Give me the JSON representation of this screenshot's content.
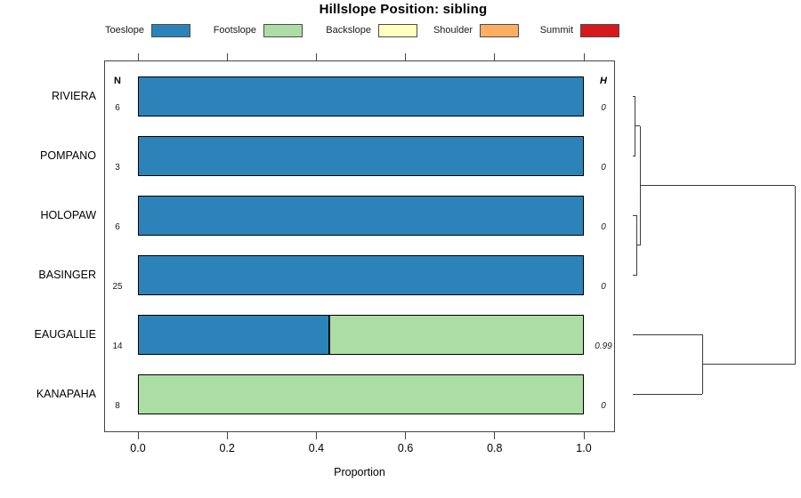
{
  "title": "Hillslope Position: sibling",
  "legend": {
    "items": [
      {
        "label": "Toeslope",
        "color": "#2B83BA"
      },
      {
        "label": "Footslope",
        "color": "#ABDDA4"
      },
      {
        "label": "Backslope",
        "color": "#FFFFBF"
      },
      {
        "label": "Shoulder",
        "color": "#FDAE61"
      },
      {
        "label": "Summit",
        "color": "#D7191C"
      }
    ]
  },
  "columns": {
    "n_header": "N",
    "h_header": "H"
  },
  "xaxis": {
    "label": "Proportion",
    "tick_labels": [
      "0.0",
      "0.2",
      "0.4",
      "0.6",
      "0.8",
      "1.0"
    ],
    "tick_values": [
      0,
      0.2,
      0.4,
      0.6,
      0.8,
      1.0
    ]
  },
  "chart_data": {
    "type": "bar",
    "subtype": "horizontal-stacked-proportion",
    "title": "Hillslope Position: sibling",
    "xlabel": "Proportion",
    "xlim": [
      0,
      1.04
    ],
    "grid": false,
    "legend_position": "top",
    "categories": [
      "RIVIERA",
      "POMPANO",
      "HOLOPAW",
      "BASINGER",
      "EAUGALLIE",
      "KANAPAHA"
    ],
    "n_values": [
      "6",
      "3",
      "6",
      "25",
      "14",
      "8"
    ],
    "h_values": [
      "0",
      "0",
      "0",
      "0",
      "0.99",
      "0"
    ],
    "series": [
      {
        "name": "Toeslope",
        "color": "#2B83BA",
        "values": [
          1,
          1,
          1,
          1,
          0.43,
          0
        ]
      },
      {
        "name": "Footslope",
        "color": "#ABDDA4",
        "values": [
          0,
          0,
          0,
          0,
          0.57,
          1
        ]
      },
      {
        "name": "Backslope",
        "color": "#FFFFBF",
        "values": [
          0,
          0,
          0,
          0,
          0,
          0
        ]
      },
      {
        "name": "Shoulder",
        "color": "#FDAE61",
        "values": [
          0,
          0,
          0,
          0,
          0,
          0
        ]
      },
      {
        "name": "Summit",
        "color": "#D7191C",
        "values": [
          0,
          0,
          0,
          0,
          0,
          0
        ]
      }
    ],
    "dendrogram": {
      "orientation": "leaves-left-root-right",
      "leaves": [
        "RIVIERA",
        "POMPANO",
        "HOLOPAW",
        "BASINGER",
        "EAUGALLIE",
        "KANAPAHA"
      ],
      "merges": [
        {
          "a": 0,
          "b": 1,
          "height": 0.015
        },
        {
          "a": 2,
          "b": 3,
          "height": 0.027
        },
        {
          "a": 6,
          "b": 7,
          "height": 0.044
        },
        {
          "a": 4,
          "b": 5,
          "height": 0.43
        },
        {
          "a": 8,
          "b": 9,
          "height": 1.0
        }
      ]
    }
  }
}
